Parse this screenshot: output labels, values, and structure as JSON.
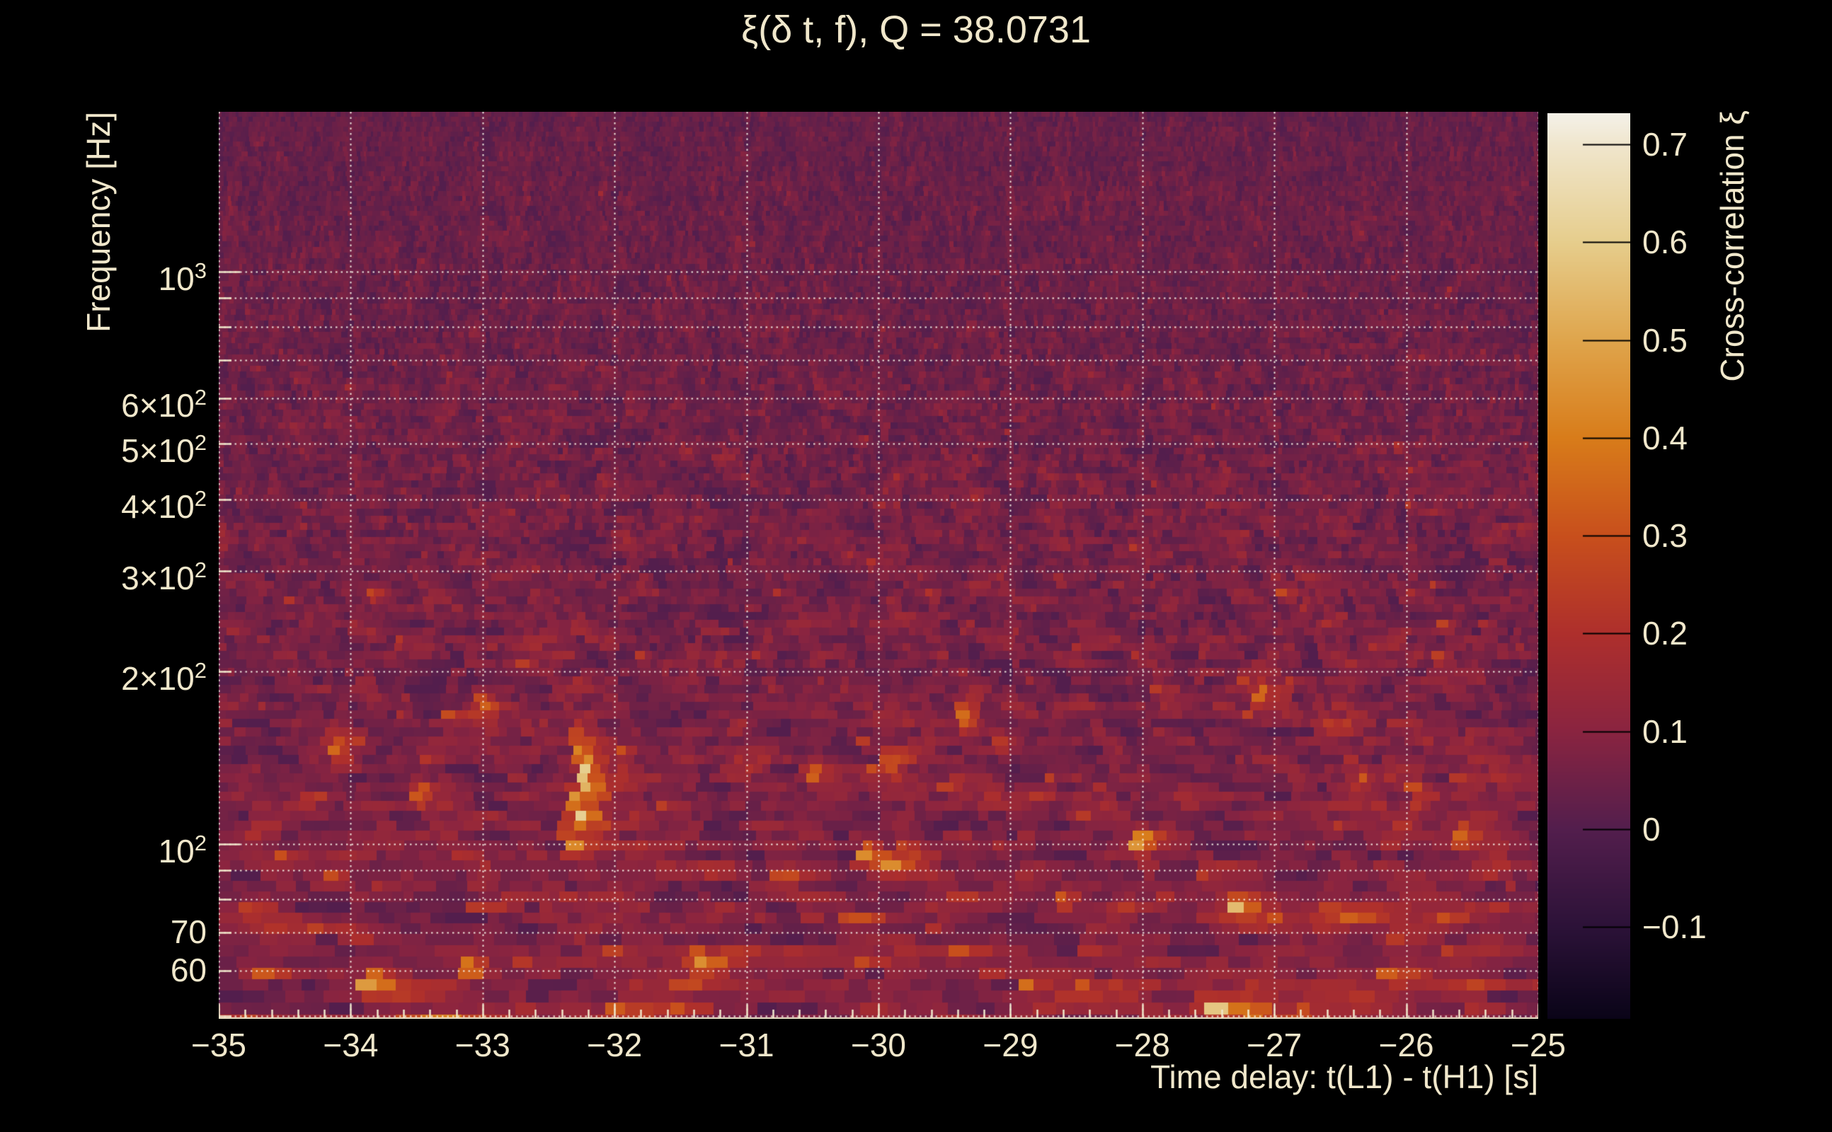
{
  "page": {
    "background": "#000000",
    "text_color": "#f0e7cb"
  },
  "header": {
    "title": "ξ(δ t, f), Q = 38.0731"
  },
  "chart_data": {
    "type": "heatmap",
    "title": "ξ(δ t, f), Q = 38.0731",
    "xlabel": "Time delay: t(L1) - t(H1) [s]",
    "ylabel": "Frequency [Hz]",
    "colorbar_label": "Cross-correlation ξ",
    "x_unit": "s",
    "xlim": [
      -35,
      -25
    ],
    "x_major_ticks": [
      {
        "v": -35,
        "label": "−35"
      },
      {
        "v": -34,
        "label": "−34"
      },
      {
        "v": -33,
        "label": "−33"
      },
      {
        "v": -32,
        "label": "−32"
      },
      {
        "v": -31,
        "label": "−31"
      },
      {
        "v": -30,
        "label": "−30"
      },
      {
        "v": -29,
        "label": "−29"
      },
      {
        "v": -28,
        "label": "−28"
      },
      {
        "v": -27,
        "label": "−27"
      },
      {
        "v": -26,
        "label": "−26"
      },
      {
        "v": -25,
        "label": "−25"
      }
    ],
    "x_minor_step": 0.2,
    "y_scale": "log",
    "ylim_hz": [
      49.5,
      1900
    ],
    "y_gridlines_hz": [
      50,
      60,
      70,
      80,
      90,
      100,
      200,
      300,
      400,
      500,
      600,
      700,
      800,
      900,
      1000
    ],
    "y_tick_labels": [
      {
        "v": 1000,
        "m": "10",
        "e": "3"
      },
      {
        "v": 600,
        "m": "6×10",
        "e": "2"
      },
      {
        "v": 500,
        "m": "5×10",
        "e": "2"
      },
      {
        "v": 400,
        "m": "4×10",
        "e": "2"
      },
      {
        "v": 300,
        "m": "3×10",
        "e": "2"
      },
      {
        "v": 200,
        "m": "2×10",
        "e": "2"
      },
      {
        "v": 100,
        "m": "10",
        "e": "2"
      },
      {
        "v": 70,
        "m": "70"
      },
      {
        "v": 60,
        "m": "60"
      }
    ],
    "grid": true,
    "grid_style": "dotted",
    "grid_color": "#f8f3e8",
    "zlim": [
      -0.194,
      0.732
    ],
    "colorbar_ticks": [
      {
        "v": 0.7,
        "label": "0.7"
      },
      {
        "v": 0.6,
        "label": "0.6"
      },
      {
        "v": 0.5,
        "label": "0.5"
      },
      {
        "v": 0.4,
        "label": "0.4"
      },
      {
        "v": 0.3,
        "label": "0.3"
      },
      {
        "v": 0.2,
        "label": "0.2"
      },
      {
        "v": 0.1,
        "label": "0.1"
      },
      {
        "v": 0.0,
        "label": "0"
      },
      {
        "v": -0.1,
        "label": "−0.1"
      }
    ],
    "colormap_stops": [
      {
        "v": -0.194,
        "c": "#0a0418"
      },
      {
        "v": -0.1,
        "c": "#2c1238"
      },
      {
        "v": 0.0,
        "c": "#531e4d"
      },
      {
        "v": 0.1,
        "c": "#8a2440"
      },
      {
        "v": 0.2,
        "c": "#ae2f2c"
      },
      {
        "v": 0.3,
        "c": "#c84f1c"
      },
      {
        "v": 0.4,
        "c": "#d87c1a"
      },
      {
        "v": 0.5,
        "c": "#dfa54c"
      },
      {
        "v": 0.6,
        "c": "#e6cd8c"
      },
      {
        "v": 0.7,
        "c": "#f0e6cd"
      },
      {
        "v": 0.732,
        "c": "#f4f1e9"
      }
    ],
    "texture": {
      "seed": 1337,
      "mu0": 0.035,
      "mu1": 0.052,
      "sig0": 0.042,
      "sig1": 0.06,
      "spike_p0": 0.004,
      "spike_p1": 0.06,
      "spike_pow": 2,
      "row_h0": 7,
      "row_h1": 10,
      "row_h_pow": 1.5,
      "cell_w0": 5,
      "cell_w1": 25,
      "cell_w_pow": 2.0,
      "v_corr0": 0.55,
      "v_corr1": 0.2,
      "h_corr0": 0.08,
      "h_corr1": 0.53
    },
    "hotspots": [
      {
        "t": -32.25,
        "f": 148,
        "xi": 0.5,
        "sx": 9,
        "sy": 26
      },
      {
        "t": -32.22,
        "f": 132,
        "xi": 0.66,
        "sx": 9,
        "sy": 26
      },
      {
        "t": -32.26,
        "f": 117,
        "xi": 0.72,
        "sx": 9,
        "sy": 26
      },
      {
        "t": -32.31,
        "f": 104,
        "xi": 0.55,
        "sx": 9,
        "sy": 24
      },
      {
        "t": -33.82,
        "f": 57,
        "xi": 0.6,
        "sx": 16,
        "sy": 14
      },
      {
        "t": -27.44,
        "f": 52,
        "xi": 0.62,
        "sx": 18,
        "sy": 12
      },
      {
        "t": -27.28,
        "f": 77,
        "xi": 0.58,
        "sx": 14,
        "sy": 14
      },
      {
        "t": -30.08,
        "f": 95,
        "xi": 0.55,
        "sx": 10,
        "sy": 16
      },
      {
        "t": -28.02,
        "f": 101,
        "xi": 0.5,
        "sx": 14,
        "sy": 14
      },
      {
        "t": -25.55,
        "f": 103,
        "xi": 0.45,
        "sx": 12,
        "sy": 14
      },
      {
        "t": -29.33,
        "f": 168,
        "xi": 0.42,
        "sx": 10,
        "sy": 20
      },
      {
        "t": -34.12,
        "f": 148,
        "xi": 0.36,
        "sx": 10,
        "sy": 18
      },
      {
        "t": -33.1,
        "f": 61,
        "xi": 0.45,
        "sx": 14,
        "sy": 12
      },
      {
        "t": -31.35,
        "f": 63,
        "xi": 0.46,
        "sx": 16,
        "sy": 12
      },
      {
        "t": -30.72,
        "f": 88,
        "xi": 0.4,
        "sx": 12,
        "sy": 12
      },
      {
        "t": -26.1,
        "f": 59,
        "xi": 0.4,
        "sx": 16,
        "sy": 12
      },
      {
        "t": -28.85,
        "f": 57,
        "xi": 0.44,
        "sx": 14,
        "sy": 12
      },
      {
        "t": -31.95,
        "f": 52,
        "xi": 0.42,
        "sx": 16,
        "sy": 10
      },
      {
        "t": -29.9,
        "f": 140,
        "xi": 0.36,
        "sx": 10,
        "sy": 16
      },
      {
        "t": -26.62,
        "f": 76,
        "xi": 0.38,
        "sx": 12,
        "sy": 12
      },
      {
        "t": -27.1,
        "f": 182,
        "xi": 0.4,
        "sx": 9,
        "sy": 18
      },
      {
        "t": -30.5,
        "f": 133,
        "xi": 0.36,
        "sx": 10,
        "sy": 14
      },
      {
        "t": -25.35,
        "f": 92,
        "xi": 0.42,
        "sx": 10,
        "sy": 12
      },
      {
        "t": -33.47,
        "f": 122,
        "xi": 0.4,
        "sx": 9,
        "sy": 16
      },
      {
        "t": -34.7,
        "f": 60,
        "xi": 0.38,
        "sx": 14,
        "sy": 10
      },
      {
        "t": -26.35,
        "f": 130,
        "xi": 0.34,
        "sx": 9,
        "sy": 14
      },
      {
        "t": -28.6,
        "f": 80,
        "xi": 0.36,
        "sx": 12,
        "sy": 12
      },
      {
        "t": -33.0,
        "f": 175,
        "xi": 0.35,
        "sx": 9,
        "sy": 16
      },
      {
        "t": -34.55,
        "f": 95,
        "xi": 0.32,
        "sx": 9,
        "sy": 14
      }
    ]
  }
}
